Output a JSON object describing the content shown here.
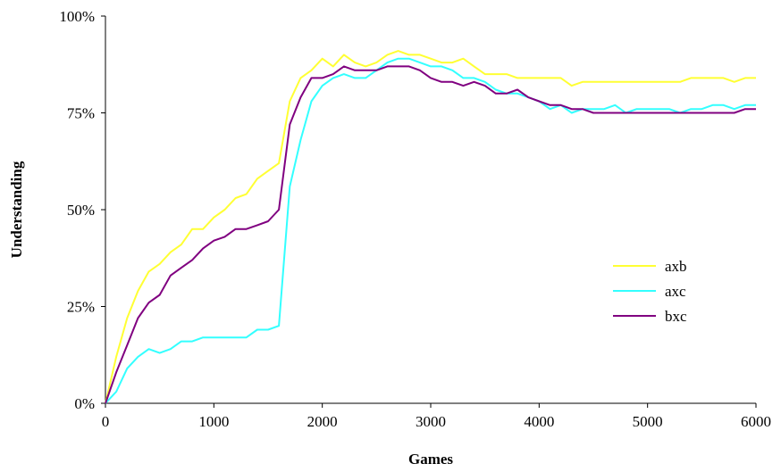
{
  "chart_data": {
    "type": "line",
    "title": "",
    "xlabel": "Games",
    "ylabel": "Understanding",
    "xlim": [
      0,
      6000
    ],
    "ylim": [
      0,
      100
    ],
    "xticks": [
      "0",
      "1000",
      "2000",
      "3000",
      "4000",
      "5000",
      "6000"
    ],
    "yticks": [
      "0%",
      "25%",
      "50%",
      "75%",
      "100%"
    ],
    "grid": false,
    "legend_position": "right",
    "series": [
      {
        "name": "axb",
        "color": "#ffff33",
        "x": [
          0,
          100,
          200,
          300,
          400,
          500,
          600,
          700,
          800,
          900,
          1000,
          1100,
          1200,
          1300,
          1400,
          1500,
          1600,
          1700,
          1800,
          1900,
          2000,
          2100,
          2200,
          2300,
          2400,
          2500,
          2600,
          2700,
          2800,
          2900,
          3000,
          3100,
          3200,
          3300,
          3400,
          3500,
          3600,
          3700,
          3800,
          3900,
          4000,
          4100,
          4200,
          4300,
          4400,
          4500,
          4600,
          4700,
          4800,
          4900,
          5000,
          5100,
          5200,
          5300,
          5400,
          5500,
          5600,
          5700,
          5800,
          5900,
          6000
        ],
        "values": [
          0,
          12,
          22,
          29,
          34,
          36,
          39,
          41,
          45,
          45,
          48,
          50,
          53,
          54,
          58,
          60,
          62,
          78,
          84,
          86,
          89,
          87,
          90,
          88,
          87,
          88,
          90,
          91,
          90,
          90,
          89,
          88,
          88,
          89,
          87,
          85,
          85,
          85,
          84,
          84,
          84,
          84,
          84,
          82,
          83,
          83,
          83,
          83,
          83,
          83,
          83,
          83,
          83,
          83,
          84,
          84,
          84,
          84,
          83,
          84,
          84
        ]
      },
      {
        "name": "axc",
        "color": "#33ffff",
        "x": [
          0,
          100,
          200,
          300,
          400,
          500,
          600,
          700,
          800,
          900,
          1000,
          1100,
          1200,
          1300,
          1400,
          1500,
          1600,
          1700,
          1800,
          1900,
          2000,
          2100,
          2200,
          2300,
          2400,
          2500,
          2600,
          2700,
          2800,
          2900,
          3000,
          3100,
          3200,
          3300,
          3400,
          3500,
          3600,
          3700,
          3800,
          3900,
          4000,
          4100,
          4200,
          4300,
          4400,
          4500,
          4600,
          4700,
          4800,
          4900,
          5000,
          5100,
          5200,
          5300,
          5400,
          5500,
          5600,
          5700,
          5800,
          5900,
          6000
        ],
        "values": [
          0,
          3,
          9,
          12,
          14,
          13,
          14,
          16,
          16,
          17,
          17,
          17,
          17,
          17,
          19,
          19,
          20,
          56,
          68,
          78,
          82,
          84,
          85,
          84,
          84,
          86,
          88,
          89,
          89,
          88,
          87,
          87,
          86,
          84,
          84,
          83,
          81,
          80,
          80,
          79,
          78,
          76,
          77,
          75,
          76,
          76,
          76,
          77,
          75,
          76,
          76,
          76,
          76,
          75,
          76,
          76,
          77,
          77,
          76,
          77,
          77
        ]
      },
      {
        "name": "bxc",
        "color": "#800080",
        "x": [
          0,
          100,
          200,
          300,
          400,
          500,
          600,
          700,
          800,
          900,
          1000,
          1100,
          1200,
          1300,
          1400,
          1500,
          1600,
          1700,
          1800,
          1900,
          2000,
          2100,
          2200,
          2300,
          2400,
          2500,
          2600,
          2700,
          2800,
          2900,
          3000,
          3100,
          3200,
          3300,
          3400,
          3500,
          3600,
          3700,
          3800,
          3900,
          4000,
          4100,
          4200,
          4300,
          4400,
          4500,
          4600,
          4700,
          4800,
          4900,
          5000,
          5100,
          5200,
          5300,
          5400,
          5500,
          5600,
          5700,
          5800,
          5900,
          6000
        ],
        "values": [
          0,
          8,
          15,
          22,
          26,
          28,
          33,
          35,
          37,
          40,
          42,
          43,
          45,
          45,
          46,
          47,
          50,
          72,
          79,
          84,
          84,
          85,
          87,
          86,
          86,
          86,
          87,
          87,
          87,
          86,
          84,
          83,
          83,
          82,
          83,
          82,
          80,
          80,
          81,
          79,
          78,
          77,
          77,
          76,
          76,
          75,
          75,
          75,
          75,
          75,
          75,
          75,
          75,
          75,
          75,
          75,
          75,
          75,
          75,
          76,
          76
        ]
      }
    ]
  }
}
